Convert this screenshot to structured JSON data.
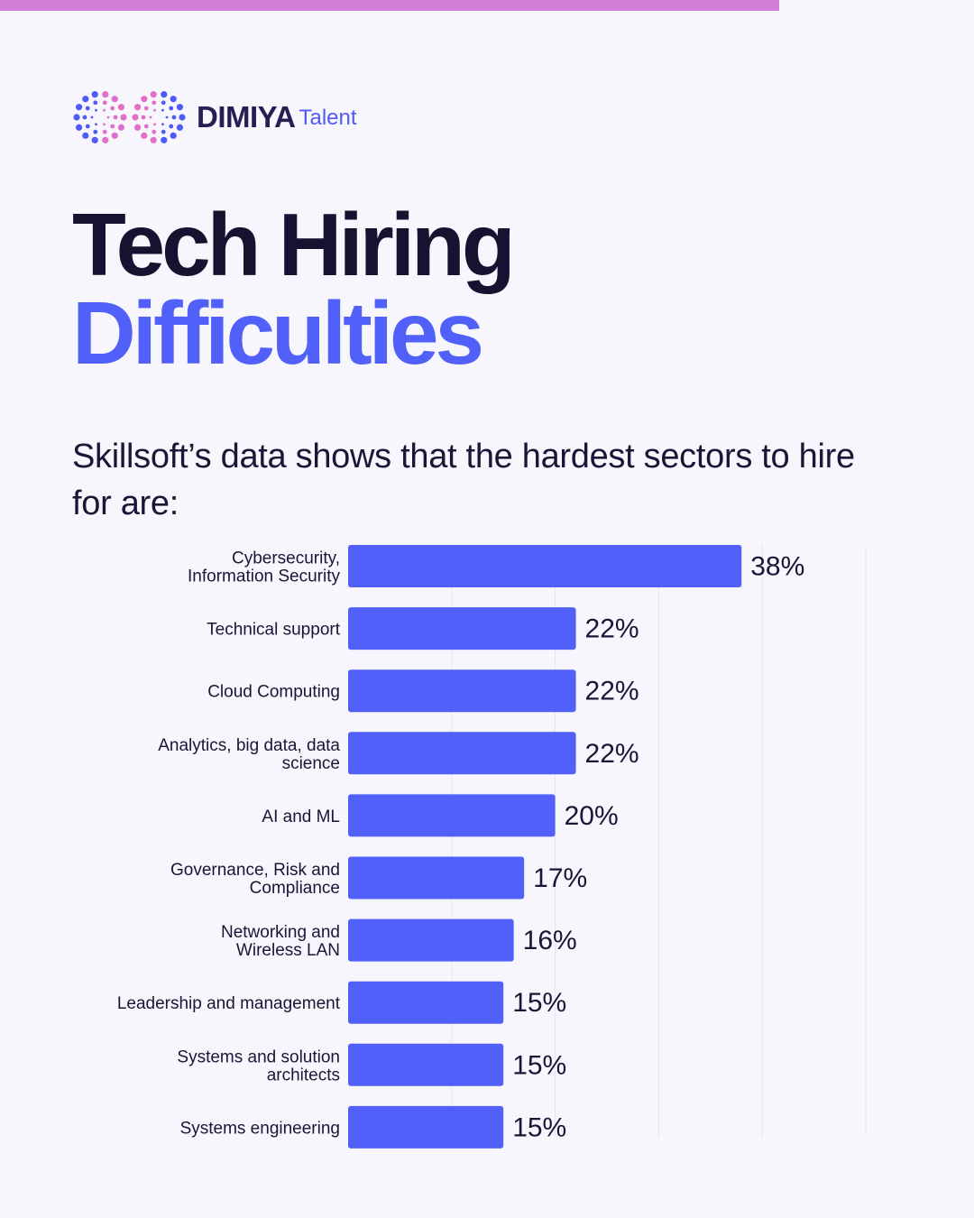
{
  "brand": {
    "name": "DIMIYA",
    "sub": "Talent",
    "colors": {
      "blue": "#4f5bf6",
      "pink": "#e070c8",
      "dark": "#252054"
    }
  },
  "header": {
    "title_line1": "Tech Hiring",
    "title_line2": "Difficulties",
    "subtitle": "Skillsoft’s data shows that the hardest sectors to hire for are:"
  },
  "colors": {
    "accent_bar": "#d27ed6",
    "bar": "#5060f8",
    "background": "#f7f6fd"
  },
  "chart_data": {
    "type": "bar",
    "orientation": "horizontal",
    "categories": [
      [
        "Cybersecurity,",
        "Information Security"
      ],
      [
        "Technical support"
      ],
      [
        "Cloud Computing"
      ],
      [
        "Analytics, big data, data",
        "science"
      ],
      [
        "AI and ML"
      ],
      [
        "Governance, Risk and",
        "Compliance"
      ],
      [
        "Networking and",
        "Wireless LAN"
      ],
      [
        "Leadership and management"
      ],
      [
        "Systems and solution",
        "architects"
      ],
      [
        "Systems engineering"
      ]
    ],
    "values": [
      38,
      22,
      22,
      22,
      20,
      17,
      16,
      15,
      15,
      15
    ],
    "value_labels": [
      "38%",
      "22%",
      "22%",
      "22%",
      "20%",
      "17%",
      "16%",
      "15%",
      "15%",
      "15%"
    ],
    "xlim": [
      0,
      50
    ],
    "grid": true
  }
}
